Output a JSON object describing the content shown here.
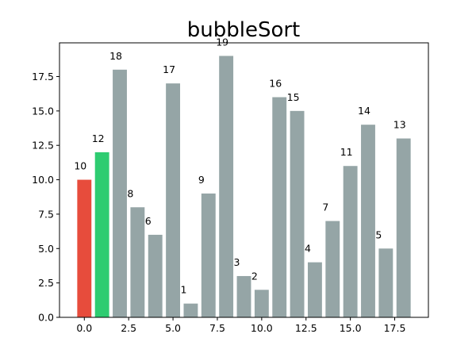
{
  "chart_data": {
    "type": "bar",
    "title": "bubbleSort",
    "xlabel": "",
    "ylabel": "",
    "x": [
      0,
      1,
      2,
      3,
      4,
      5,
      6,
      7,
      8,
      9,
      10,
      11,
      12,
      13,
      14,
      15,
      16,
      17,
      18
    ],
    "values": [
      10,
      12,
      18,
      8,
      6,
      17,
      1,
      9,
      19,
      3,
      2,
      16,
      15,
      4,
      7,
      11,
      14,
      5,
      13
    ],
    "bar_colors": [
      "#e74c3c",
      "#2ecc71",
      "#95a5a6",
      "#95a5a6",
      "#95a5a6",
      "#95a5a6",
      "#95a5a6",
      "#95a5a6",
      "#95a5a6",
      "#95a5a6",
      "#95a5a6",
      "#95a5a6",
      "#95a5a6",
      "#95a5a6",
      "#95a5a6",
      "#95a5a6",
      "#95a5a6",
      "#95a5a6",
      "#95a5a6"
    ],
    "xlim": [
      -1.4,
      19.4
    ],
    "ylim": [
      0,
      19.95
    ],
    "xticks": [
      0.0,
      2.5,
      5.0,
      7.5,
      10.0,
      12.5,
      15.0,
      17.5
    ],
    "xtick_labels": [
      "0.0",
      "2.5",
      "5.0",
      "7.5",
      "10.0",
      "12.5",
      "15.0",
      "17.5"
    ],
    "yticks": [
      0.0,
      2.5,
      5.0,
      7.5,
      10.0,
      12.5,
      15.0,
      17.5
    ],
    "ytick_labels": [
      "0.0",
      "2.5",
      "5.0",
      "7.5",
      "10.0",
      "12.5",
      "15.0",
      "17.5"
    ],
    "grid": false,
    "legend": "none"
  }
}
